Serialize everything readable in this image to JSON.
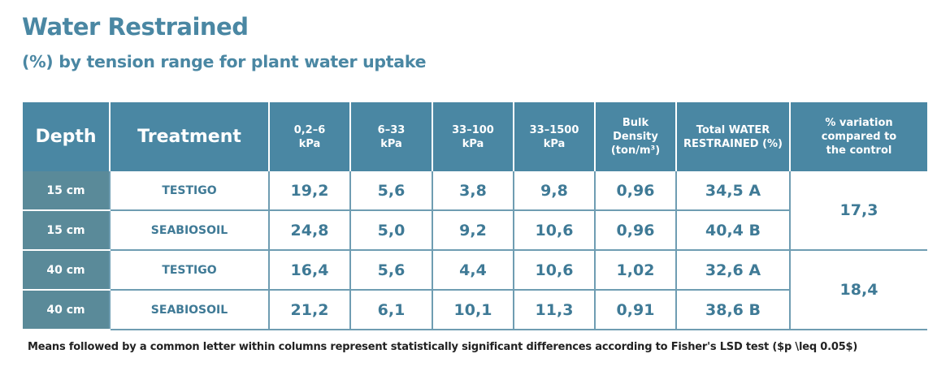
{
  "title": "Water Restrained",
  "subtitle": "(%) by tension range for plant water uptake",
  "headers": [
    "Depth",
    "Treatment",
    "0,2–6\nkPa",
    "6–33\nkPa",
    "33–100\nkPa",
    "33–1500\nkPa",
    "Bulk\nDensity\n(ton/m³)",
    "Total WATER\nRESTRAINED (%)",
    "% variation\ncompared to\nthe control"
  ],
  "rows": [
    {
      "depth": "15 cm",
      "treatment": "TESTIGO",
      "v1": "19,2",
      "v2": "5,6",
      "v3": "3,8",
      "v4": "9,8",
      "bd": "0,96",
      "total": "34,5 A"
    },
    {
      "depth": "15 cm",
      "treatment": "SEABIOSOIL",
      "v1": "24,8",
      "v2": "5,0",
      "v3": "9,2",
      "v4": "10,6",
      "bd": "0,96",
      "total": "40,4 B"
    },
    {
      "depth": "40 cm",
      "treatment": "TESTIGO",
      "v1": "16,4",
      "v2": "5,6",
      "v3": "4,4",
      "v4": "10,6",
      "bd": "1,02",
      "total": "32,6 A"
    },
    {
      "depth": "40 cm",
      "treatment": "SEABIOSOIL",
      "v1": "21,2",
      "v2": "6,1",
      "v3": "10,1",
      "v4": "11,3",
      "bd": "0,91",
      "total": "38,6 B"
    }
  ],
  "variation": [
    "17,3",
    "18,4"
  ],
  "footnote": "Means followed by a common letter within columns represent statistically significant differences according to Fisher's LSD test ($p \\leq 0.05$)"
}
